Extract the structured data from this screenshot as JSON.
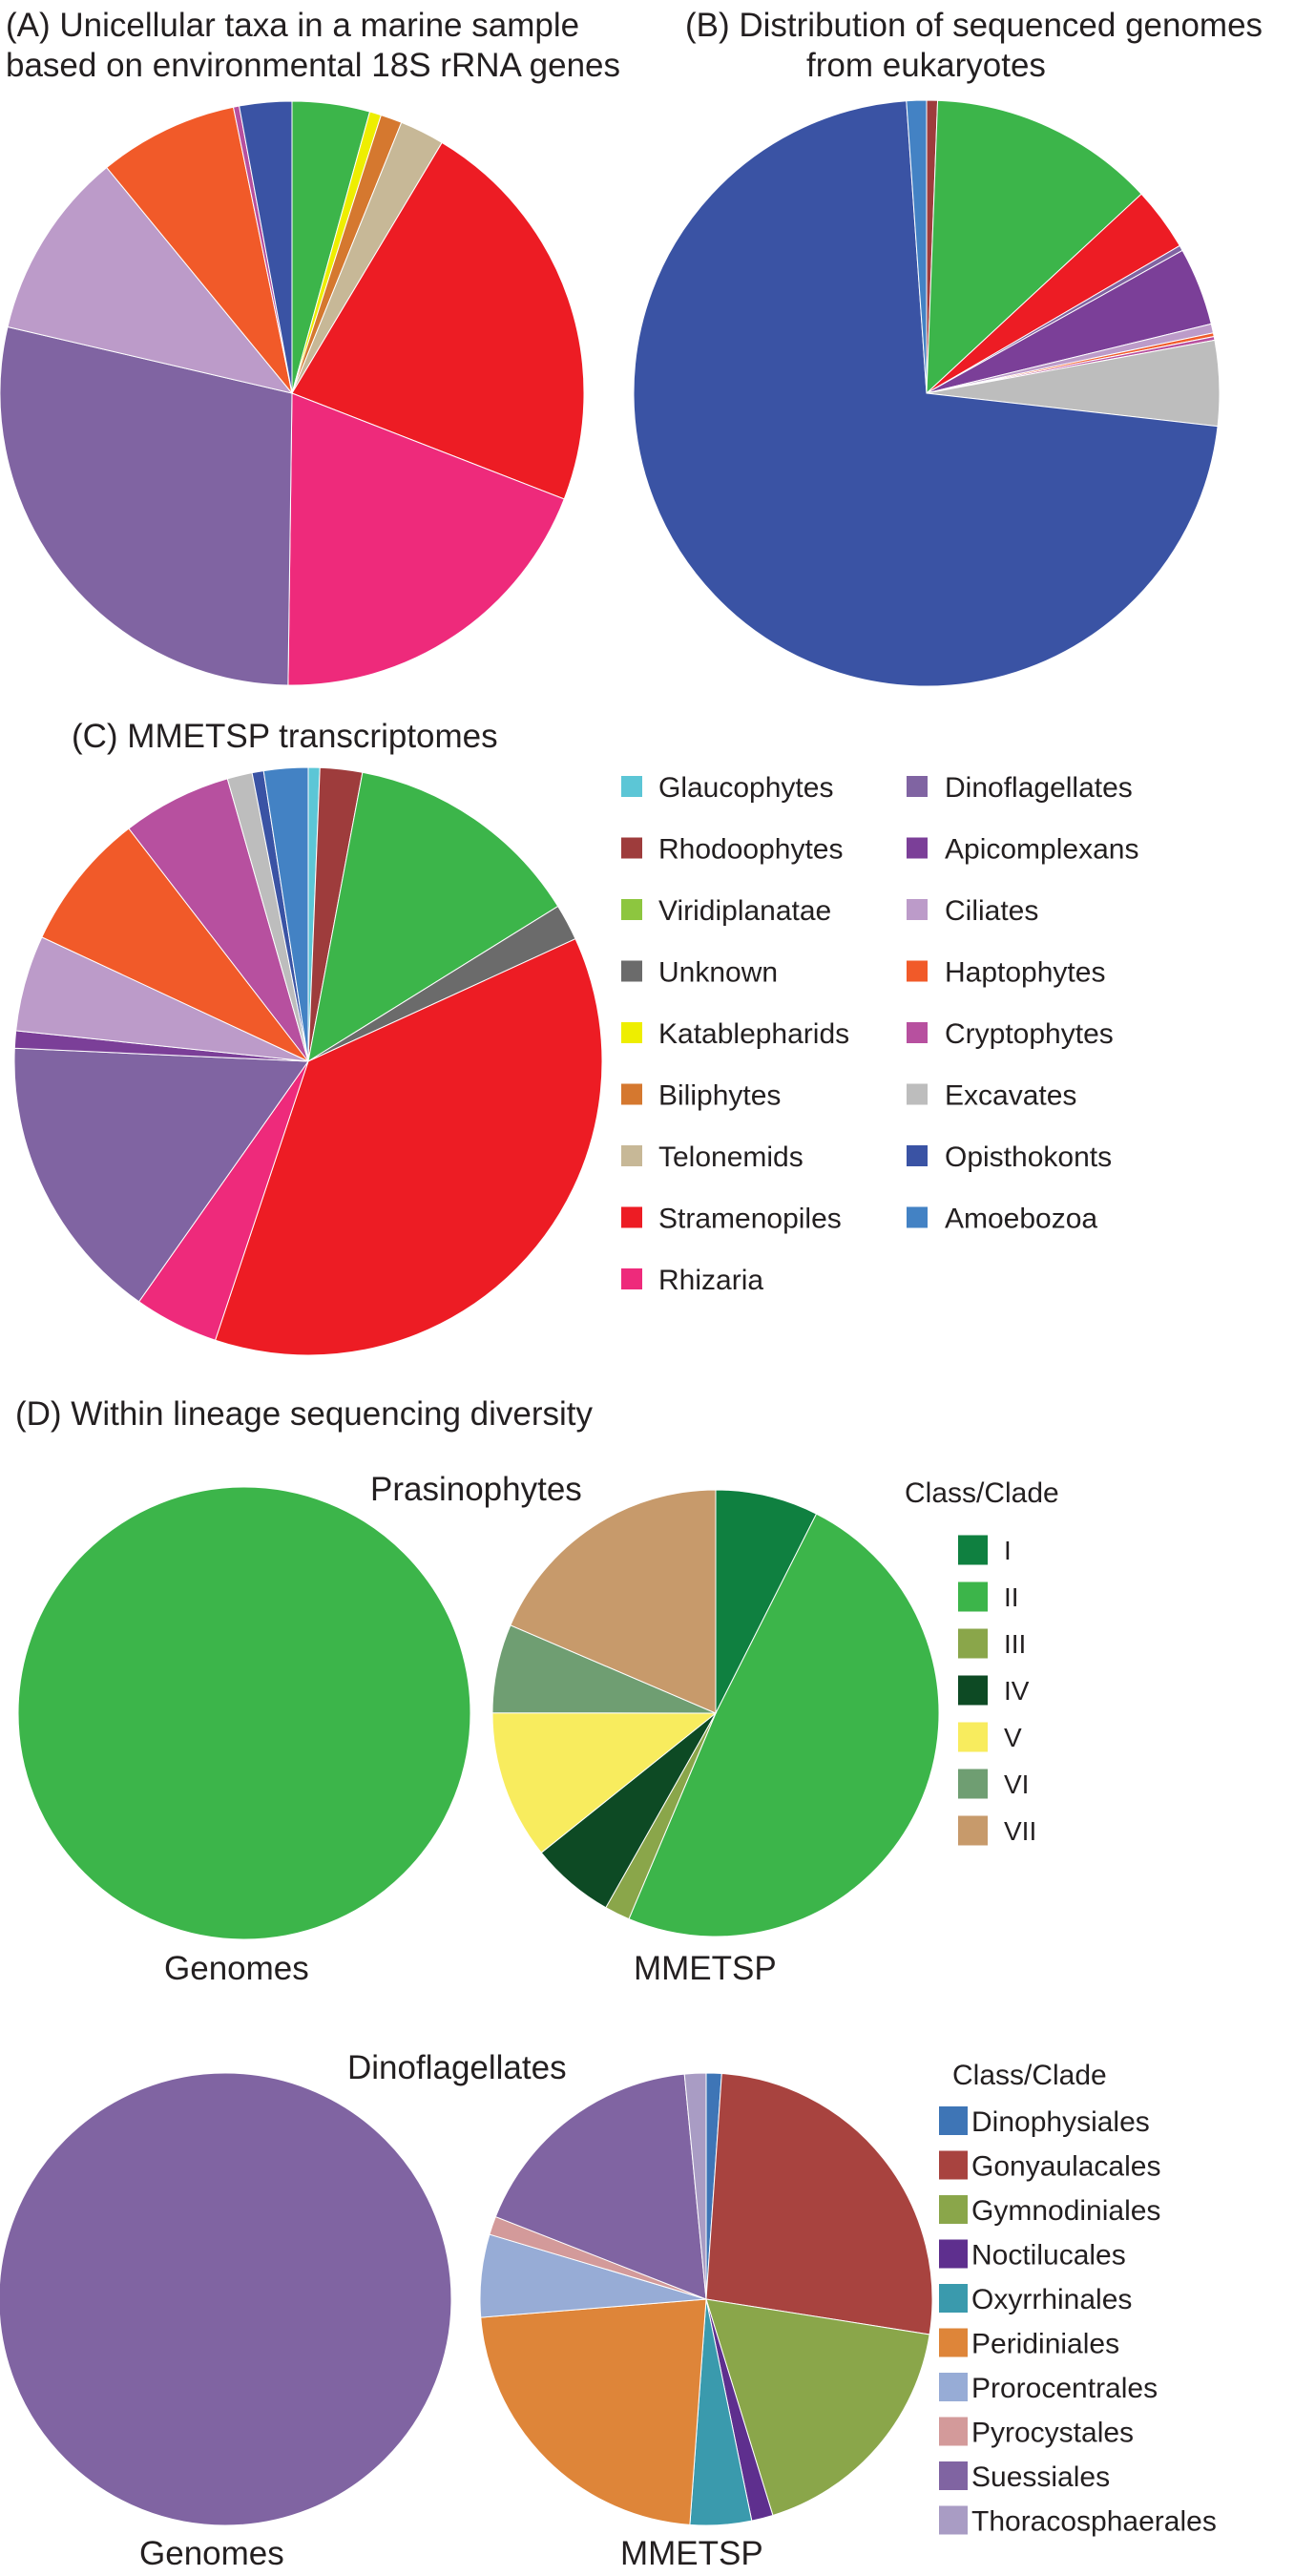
{
  "chart_data": [
    {
      "id": "A",
      "type": "pie",
      "title": "(A) Unicellular taxa in a marine sample",
      "title_line2": "based on environmental 18S rRNA genes",
      "slices": [
        {
          "label": "Glaucophytes",
          "value": 0.0,
          "color": "#5cc6d6"
        },
        {
          "label": "Rhodoophytes",
          "value": 0.0,
          "color": "#9e3c3c"
        },
        {
          "label": "Viridiplanatae",
          "value": 4.0,
          "color": "#3cb54a"
        },
        {
          "label": "Unknown",
          "value": 0.0,
          "color": "#6b6b6b"
        },
        {
          "label": "Katablepharids",
          "value": 0.6,
          "color": "#eeee00"
        },
        {
          "label": "Biliphytes",
          "value": 1.1,
          "color": "#d5782f"
        },
        {
          "label": "Telonemids",
          "value": 2.3,
          "color": "#c7b897"
        },
        {
          "label": "Stramenopiles",
          "value": 20.8,
          "color": "#ed1c24"
        },
        {
          "label": "Rhizaria",
          "value": 18.0,
          "color": "#ee2a7b"
        },
        {
          "label": "Dinoflagellates",
          "value": 26.5,
          "color": "#8064a2"
        },
        {
          "label": "Apicomplexans",
          "value": 0.0,
          "color": "#7b3f98"
        },
        {
          "label": "Ciliates",
          "value": 9.7,
          "color": "#bc9bc9"
        },
        {
          "label": "Haptophytes",
          "value": 7.2,
          "color": "#f15a29"
        },
        {
          "label": "Cryptophytes",
          "value": 0.3,
          "color": "#b7509f"
        },
        {
          "label": "Excavates",
          "value": 0.0,
          "color": "#bdbdbd"
        },
        {
          "label": "Opisthokonts",
          "value": 2.7,
          "color": "#3a53a4"
        },
        {
          "label": "Amoebozoa",
          "value": 0.0,
          "color": "#4382c4"
        }
      ]
    },
    {
      "id": "B",
      "type": "pie",
      "title": "(B) Distribution of sequenced genomes",
      "title_line2": "from eukaryotes",
      "slices": [
        {
          "label": "Glaucophytes",
          "value": 0.0,
          "color": "#5cc6d6"
        },
        {
          "label": "Rhodoophytes",
          "value": 0.6,
          "color": "#9e3c3c"
        },
        {
          "label": "Viridiplanatae",
          "value": 12.5,
          "color": "#3cb54a"
        },
        {
          "label": "Unknown",
          "value": 0.0,
          "color": "#6b6b6b"
        },
        {
          "label": "Katablepharids",
          "value": 0.0,
          "color": "#eeee00"
        },
        {
          "label": "Biliphytes",
          "value": 0.0,
          "color": "#d5782f"
        },
        {
          "label": "Telonemids",
          "value": 0.0,
          "color": "#c7b897"
        },
        {
          "label": "Stramenopiles",
          "value": 3.5,
          "color": "#ed1c24"
        },
        {
          "label": "Rhizaria",
          "value": 0.0,
          "color": "#ee2a7b"
        },
        {
          "label": "Dinoflagellates",
          "value": 0.3,
          "color": "#8064a2"
        },
        {
          "label": "Apicomplexans",
          "value": 4.3,
          "color": "#7b3f98"
        },
        {
          "label": "Ciliates",
          "value": 0.5,
          "color": "#bc9bc9"
        },
        {
          "label": "Haptophytes",
          "value": 0.2,
          "color": "#f15a29"
        },
        {
          "label": "Cryptophytes",
          "value": 0.2,
          "color": "#b7509f"
        },
        {
          "label": "Excavates",
          "value": 4.7,
          "color": "#bdbdbd"
        },
        {
          "label": "Opisthokonts",
          "value": 72.1,
          "color": "#3a53a4"
        },
        {
          "label": "Amoebozoa",
          "value": 1.1,
          "color": "#4382c4"
        }
      ]
    },
    {
      "id": "C",
      "type": "pie",
      "title": "(C) MMETSP transcriptomes",
      "slices": [
        {
          "label": "Glaucophytes",
          "value": 0.6,
          "color": "#5cc6d6"
        },
        {
          "label": "Rhodoophytes",
          "value": 2.2,
          "color": "#9e3c3c"
        },
        {
          "label": "Viridiplanatae",
          "value": 12.5,
          "color": "#3cb54a"
        },
        {
          "label": "Unknown",
          "value": 1.9,
          "color": "#6b6b6b"
        },
        {
          "label": "Katablepharids",
          "value": 0.0,
          "color": "#eeee00"
        },
        {
          "label": "Biliphytes",
          "value": 0.0,
          "color": "#d5782f"
        },
        {
          "label": "Telonemids",
          "value": 0.0,
          "color": "#c7b897"
        },
        {
          "label": "Stramenopiles",
          "value": 35.0,
          "color": "#ed1c24"
        },
        {
          "label": "Rhizaria",
          "value": 4.4,
          "color": "#ee2a7b"
        },
        {
          "label": "Dinoflagellates",
          "value": 15.1,
          "color": "#8064a2"
        },
        {
          "label": "Apicomplexans",
          "value": 0.9,
          "color": "#7b3f98"
        },
        {
          "label": "Ciliates",
          "value": 5.0,
          "color": "#bc9bc9"
        },
        {
          "label": "Haptophytes",
          "value": 7.2,
          "color": "#f15a29"
        },
        {
          "label": "Cryptophytes",
          "value": 5.7,
          "color": "#b7509f"
        },
        {
          "label": "Excavates",
          "value": 1.3,
          "color": "#bdbdbd"
        },
        {
          "label": "Opisthokonts",
          "value": 0.6,
          "color": "#3a53a4"
        },
        {
          "label": "Amoebozoa",
          "value": 2.3,
          "color": "#4382c4"
        }
      ]
    },
    {
      "id": "D-prasino-genomes",
      "type": "pie",
      "slices": [
        {
          "label": "II",
          "value": 100,
          "color": "#3cb54a"
        }
      ]
    },
    {
      "id": "D-prasino-mmetsp",
      "type": "pie",
      "slices": [
        {
          "label": "I",
          "value": 6.5,
          "color": "#0f8040"
        },
        {
          "label": "II",
          "value": 42.7,
          "color": "#3cb54a"
        },
        {
          "label": "III",
          "value": 1.6,
          "color": "#8aa64a"
        },
        {
          "label": "IV",
          "value": 5.3,
          "color": "#0d4a24"
        },
        {
          "label": "V",
          "value": 9.4,
          "color": "#f8ec5e"
        },
        {
          "label": "VI",
          "value": 5.6,
          "color": "#6f9e72"
        },
        {
          "label": "VII",
          "value": 16.2,
          "color": "#c79a6b"
        }
      ]
    },
    {
      "id": "D-dino-genomes",
      "type": "pie",
      "slices": [
        {
          "label": "Suessiales",
          "value": 100,
          "color": "#8064a2"
        }
      ]
    },
    {
      "id": "D-dino-mmetsp",
      "type": "pie",
      "slices": [
        {
          "label": "Dinophysiales",
          "value": 1.0,
          "color": "#3e75b6"
        },
        {
          "label": "Gonyaulacales",
          "value": 24.1,
          "color": "#a8433f"
        },
        {
          "label": "Gymnodiniales",
          "value": 16.2,
          "color": "#8aa64a"
        },
        {
          "label": "Noctilucales",
          "value": 1.4,
          "color": "#5e2f8e"
        },
        {
          "label": "Oxyrrhinales",
          "value": 4.0,
          "color": "#3a9aad"
        },
        {
          "label": "Peridiniales",
          "value": 20.6,
          "color": "#de8539"
        },
        {
          "label": "Prorocentrales",
          "value": 5.4,
          "color": "#97acd6"
        },
        {
          "label": "Pyrocystales",
          "value": 1.2,
          "color": "#d39a9a"
        },
        {
          "label": "Suessiales",
          "value": 16.0,
          "color": "#8064a2"
        },
        {
          "label": "Thoracosphaerales",
          "value": 1.4,
          "color": "#a99cc4"
        }
      ]
    }
  ],
  "legend_taxa": {
    "col1": [
      {
        "label": "Glaucophytes",
        "color": "#5cc6d6"
      },
      {
        "label": "Rhodoophytes",
        "color": "#9e3c3c"
      },
      {
        "label": "Viridiplanatae",
        "color": "#8dc63f"
      },
      {
        "label": "Unknown",
        "color": "#6b6b6b"
      },
      {
        "label": "Katablepharids",
        "color": "#eeee00"
      },
      {
        "label": "Biliphytes",
        "color": "#d5782f"
      },
      {
        "label": "Telonemids",
        "color": "#c7b897"
      },
      {
        "label": "Stramenopiles",
        "color": "#ed1c24"
      },
      {
        "label": "Rhizaria",
        "color": "#ee2a7b"
      }
    ],
    "col2": [
      {
        "label": "Dinoflagellates",
        "color": "#8064a2"
      },
      {
        "label": "Apicomplexans",
        "color": "#7b3f98"
      },
      {
        "label": "Ciliates",
        "color": "#bc9bc9"
      },
      {
        "label": "Haptophytes",
        "color": "#f15a29"
      },
      {
        "label": "Cryptophytes",
        "color": "#b7509f"
      },
      {
        "label": "Excavates",
        "color": "#bdbdbd"
      },
      {
        "label": "Opisthokonts",
        "color": "#3a53a4"
      },
      {
        "label": "Amoebozoa",
        "color": "#4382c4"
      }
    ]
  },
  "panel_d": {
    "title": "(D) Within lineage sequencing diversity",
    "prasino_title": "Prasinophytes",
    "dino_title": "Dinoflagellates",
    "genomes_label": "Genomes",
    "mmetsp_label": "MMETSP",
    "legend_title": "Class/Clade",
    "prasino_legend": [
      {
        "label": "I",
        "color": "#0f8040"
      },
      {
        "label": "II",
        "color": "#3cb54a"
      },
      {
        "label": "III",
        "color": "#8aa64a"
      },
      {
        "label": "IV",
        "color": "#0d4a24"
      },
      {
        "label": "V",
        "color": "#f8ec5e"
      },
      {
        "label": "VI",
        "color": "#6f9e72"
      },
      {
        "label": "VII",
        "color": "#c79a6b"
      }
    ],
    "dino_legend": [
      {
        "label": "Dinophysiales",
        "color": "#3e75b6"
      },
      {
        "label": "Gonyaulacales",
        "color": "#a8433f"
      },
      {
        "label": "Gymnodiniales",
        "color": "#8aa64a"
      },
      {
        "label": "Noctilucales",
        "color": "#5e2f8e"
      },
      {
        "label": "Oxyrrhinales",
        "color": "#3a9aad"
      },
      {
        "label": "Peridiniales",
        "color": "#de8539"
      },
      {
        "label": "Prorocentrales",
        "color": "#97acd6"
      },
      {
        "label": "Pyrocystales",
        "color": "#d39a9a"
      },
      {
        "label": "Suessiales",
        "color": "#8064a2"
      },
      {
        "label": "Thoracosphaerales",
        "color": "#a99cc4"
      }
    ]
  }
}
